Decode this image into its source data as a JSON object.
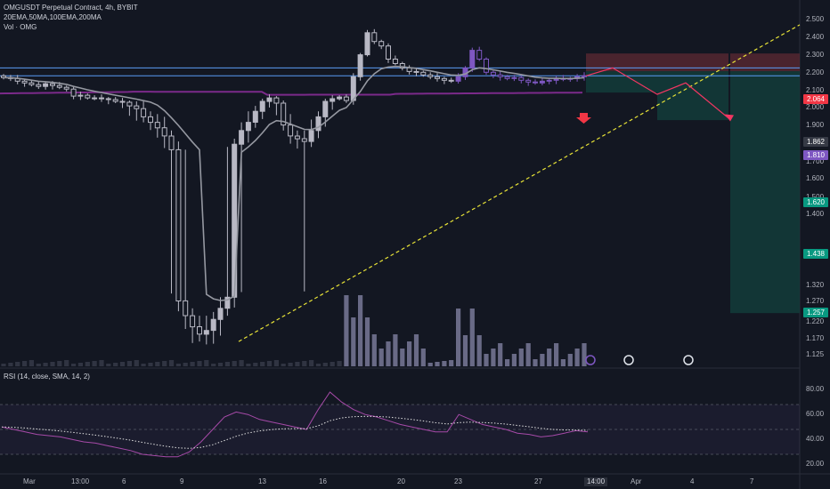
{
  "header": {
    "title": "OMGUSDT Perpetual Contract, 4h, BYBIT",
    "indicators": "20EMA,50MA,100EMA,200MA",
    "volume": "Vol · OMG",
    "rsi": "RSI (14, close, SMA, 14, 2)"
  },
  "colors": {
    "background": "#131722",
    "candle": "#b8b8c4",
    "candle_recent": "#7e57c2",
    "ema20": "#9598a1",
    "ma200": "#7b2a8a",
    "trendline": "#e8e337",
    "resistance": "#5b9cf6",
    "projection": "#f23662",
    "short_stop": "#5e2a33",
    "short_target": "#133f3c",
    "rsi_line": "#a64aa8",
    "rsi_signal": "#e0e0e0"
  },
  "price_axis": {
    "ticks": [
      "2.500",
      "2.400",
      "2.300",
      "2.200",
      "2.100",
      "2.000",
      "1.900",
      "1.800",
      "1.700",
      "1.600",
      "1.500",
      "1.400",
      "1.320",
      "1.270",
      "1.220",
      "1.170",
      "1.125"
    ]
  },
  "price_tags": [
    {
      "text": "2.064",
      "kind": "red"
    },
    {
      "text": "1.862",
      "kind": "gray"
    },
    {
      "text": "1.810",
      "kind": "purple"
    },
    {
      "text": "1.620",
      "kind": "green"
    },
    {
      "text": "1.438",
      "kind": "green"
    },
    {
      "text": "1.257",
      "kind": "green"
    }
  ],
  "rsi_axis": {
    "ticks": [
      "80.00",
      "60.00",
      "40.00",
      "20.00"
    ]
  },
  "time_axis": {
    "ticks": [
      "Mar",
      "13:00",
      "6",
      "9",
      "13",
      "16",
      "20",
      "23",
      "27",
      "14:00",
      "Apr",
      "4",
      "7"
    ]
  },
  "chart_data": {
    "type": "candlestick",
    "symbol": "OMGUSDT Perpetual Contract",
    "interval": "4h",
    "exchange": "BYBIT",
    "horizontal_levels": [
      1.9,
      1.81
    ],
    "trendline": {
      "from": [
        1.17,
        "9 Mar"
      ],
      "to": [
        2.4,
        "7 Apr"
      ]
    },
    "short_positions": [
      {
        "entry": 1.862,
        "stop": 2.064,
        "target": 1.62
      },
      {
        "entry": 1.862,
        "stop": 2.064,
        "target": 1.438
      },
      {
        "entry": 1.862,
        "stop": 2.064,
        "target": 1.257
      }
    ],
    "close_approx": [
      1.79,
      1.78,
      1.75,
      1.73,
      1.71,
      1.69,
      1.72,
      1.7,
      1.68,
      1.66,
      1.58,
      1.59,
      1.56,
      1.56,
      1.55,
      1.54,
      1.52,
      1.51,
      1.49,
      1.48,
      1.45,
      1.43,
      1.41,
      1.38,
      1.33,
      1.29,
      1.25,
      1.22,
      1.2,
      1.21,
      1.24,
      1.27,
      1.3,
      1.35,
      1.4,
      1.43,
      1.47,
      1.52,
      1.56,
      1.5,
      1.42,
      1.38,
      1.37,
      1.36,
      1.4,
      1.45,
      1.52,
      1.55,
      1.57,
      1.53,
      1.8,
      2.05,
      2.3,
      2.2,
      2.15,
      2.0,
      1.95,
      1.9,
      1.86,
      1.85,
      1.82,
      1.8,
      1.78,
      1.76,
      1.75,
      1.8,
      1.9,
      2.1,
      2.0,
      1.85,
      1.82,
      1.8,
      1.78,
      1.79,
      1.76,
      1.74,
      1.73,
      1.75,
      1.76,
      1.78,
      1.77,
      1.78,
      1.8,
      1.81
    ],
    "rsi_approx": [
      52,
      50,
      48,
      46,
      45,
      44,
      42,
      40,
      39,
      37,
      35,
      33,
      30,
      29,
      28,
      28,
      32,
      40,
      50,
      60,
      64,
      62,
      58,
      56,
      54,
      52,
      50,
      66,
      80,
      72,
      66,
      62,
      60,
      57,
      54,
      52,
      50,
      48,
      48,
      62,
      58,
      54,
      52,
      50,
      47,
      46,
      44,
      45,
      47,
      49,
      48
    ]
  }
}
